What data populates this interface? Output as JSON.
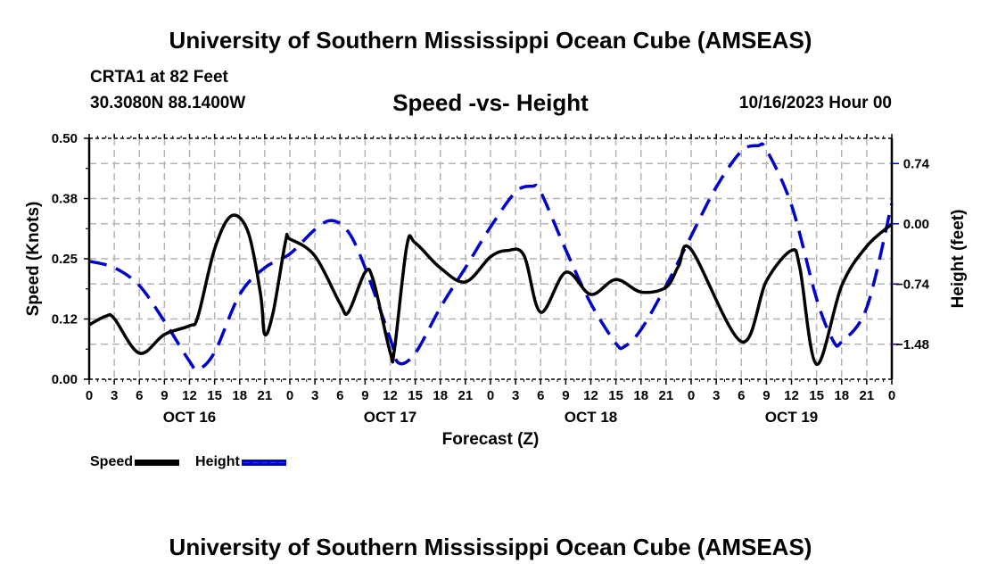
{
  "header": {
    "main_title": "University of Southern Mississippi Ocean Cube (AMSEAS)",
    "station": "CRTA1 at 82 Feet",
    "coords": "30.3080N  88.1400W",
    "subtitle": "Speed -vs- Height",
    "datetime": "10/16/2023 Hour 00"
  },
  "footer": {
    "bottom_title": "University of Southern Mississippi Ocean Cube (AMSEAS)"
  },
  "legend": {
    "speed_label": "Speed",
    "height_label": "Height"
  },
  "chart_data": {
    "type": "line",
    "title": "Speed -vs- Height",
    "xlabel": "Forecast (Z)",
    "ylabel": "Speed (Knots)",
    "ylabel_right": "Height (feet)",
    "xlim": [
      0,
      96
    ],
    "ylim": [
      0.0,
      0.5
    ],
    "ylim_right": [
      -1.91,
      1.05
    ],
    "grid": true,
    "legend_position": "bottom-left",
    "x_tick_labels": [
      "0",
      "3",
      "6",
      "9",
      "12",
      "15",
      "18",
      "21",
      "0",
      "3",
      "6",
      "9",
      "12",
      "15",
      "18",
      "21",
      "0",
      "3",
      "6",
      "9",
      "12",
      "15",
      "18",
      "21",
      "0",
      "3",
      "6",
      "9",
      "12",
      "15",
      "18",
      "21",
      "0"
    ],
    "day_labels": [
      {
        "label": "OCT 16",
        "hour": 12
      },
      {
        "label": "OCT 17",
        "hour": 36
      },
      {
        "label": "OCT 18",
        "hour": 60
      },
      {
        "label": "OCT 19",
        "hour": 84
      }
    ],
    "y_ticks_left": [
      {
        "label": "0.00",
        "value": 0.0
      },
      {
        "label": "0.12",
        "value": 0.125
      },
      {
        "label": "0.25",
        "value": 0.25
      },
      {
        "label": "0.38",
        "value": 0.375
      },
      {
        "label": "0.50",
        "value": 0.5
      }
    ],
    "y_ticks_right": [
      {
        "label": "0.74",
        "value": 0.74
      },
      {
        "label": "0.00",
        "value": 0.0
      },
      {
        "label": "−0.74",
        "value": -0.74
      },
      {
        "label": "−1.48",
        "value": -1.48
      }
    ],
    "series": [
      {
        "name": "Speed",
        "axis": "left",
        "color": "#000000",
        "style": "solid",
        "x": [
          0,
          2,
          3,
          6,
          9,
          12,
          13,
          15,
          17,
          19,
          20.5,
          21,
          22,
          23.5,
          24,
          27,
          30,
          31,
          33,
          34,
          36,
          36.5,
          38,
          39,
          42,
          45,
          48,
          50,
          52,
          54,
          57,
          60,
          63,
          66,
          69,
          70.5,
          72,
          78,
          81,
          84,
          85,
          87,
          90,
          93,
          96
        ],
        "values": [
          0.113,
          0.131,
          0.126,
          0.054,
          0.093,
          0.111,
          0.13,
          0.27,
          0.339,
          0.306,
          0.176,
          0.093,
          0.139,
          0.287,
          0.291,
          0.256,
          0.157,
          0.139,
          0.222,
          0.204,
          0.056,
          0.061,
          0.278,
          0.283,
          0.231,
          0.202,
          0.254,
          0.267,
          0.257,
          0.139,
          0.222,
          0.176,
          0.207,
          0.181,
          0.191,
          0.235,
          0.269,
          0.078,
          0.204,
          0.267,
          0.231,
          0.031,
          0.194,
          0.276,
          0.322
        ]
      },
      {
        "name": "Height",
        "axis": "right",
        "color": "#0000cc",
        "style": "dashed",
        "x": [
          0,
          3,
          6,
          9,
          12,
          13,
          15,
          18,
          21,
          24,
          27,
          29,
          31,
          33,
          36,
          37,
          39,
          42,
          45,
          48,
          51,
          53,
          54,
          57,
          60,
          63,
          64,
          66,
          69,
          72,
          75,
          78,
          80,
          81,
          84,
          87,
          89,
          90,
          93,
          96
        ],
        "values": [
          -0.46,
          -0.54,
          -0.76,
          -1.2,
          -1.69,
          -1.79,
          -1.58,
          -0.87,
          -0.54,
          -0.37,
          -0.07,
          0.04,
          -0.1,
          -0.54,
          -1.41,
          -1.71,
          -1.59,
          -1.03,
          -0.54,
          -0.04,
          0.39,
          0.46,
          0.39,
          -0.32,
          -0.98,
          -1.47,
          -1.51,
          -1.3,
          -0.76,
          -0.15,
          0.45,
          0.89,
          0.96,
          0.91,
          0.23,
          -0.92,
          -1.44,
          -1.45,
          -1.03,
          0.25
        ]
      }
    ]
  }
}
